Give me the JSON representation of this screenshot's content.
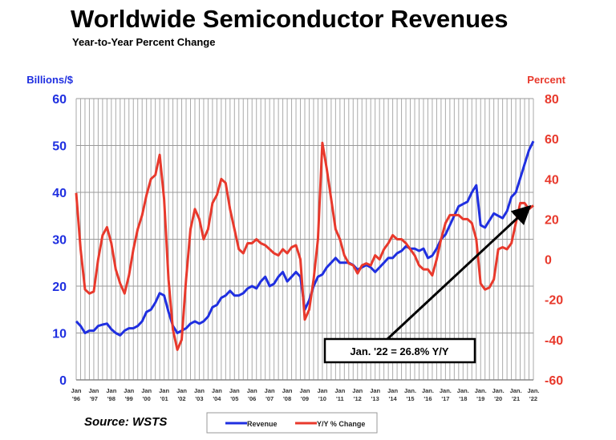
{
  "chart_data": {
    "type": "line",
    "title": "Worldwide Semiconductor Revenues",
    "subtitle": "Year-to-Year Percent Change",
    "ylabel_left": "Billions/$",
    "ylabel_right": "Percent",
    "ylim_left": [
      0,
      60
    ],
    "ylim_right": [
      -60,
      80
    ],
    "yticks_left": [
      "0",
      "10",
      "20",
      "30",
      "40",
      "50",
      "60"
    ],
    "yticks_right": [
      "-60",
      "-40",
      "-20",
      "0",
      "20",
      "40",
      "60",
      "80"
    ],
    "xticks": [
      [
        "Jan",
        "'96"
      ],
      [
        "Jan",
        "'97"
      ],
      [
        "Jan",
        "'98"
      ],
      [
        "Jan",
        "'99"
      ],
      [
        "Jan",
        "'00"
      ],
      [
        "Jan",
        "'01"
      ],
      [
        "Jan",
        "'02"
      ],
      [
        "Jan",
        "'03"
      ],
      [
        "Jan",
        "'04"
      ],
      [
        "Jan",
        "'05"
      ],
      [
        "Jan",
        "'06"
      ],
      [
        "Jan",
        "'07"
      ],
      [
        "Jan",
        "'08"
      ],
      [
        "Jan",
        "'09"
      ],
      [
        "Jan",
        "'10"
      ],
      [
        "Jan",
        "'11"
      ],
      [
        "Jan",
        "'12"
      ],
      [
        "Jan",
        "'13"
      ],
      [
        "Jan",
        "'14"
      ],
      [
        "Jan.",
        "'15"
      ],
      [
        "Jan.",
        "'16"
      ],
      [
        "Jan.",
        "'17"
      ],
      [
        "Jan.",
        "'18"
      ],
      [
        "Jan.",
        "'19"
      ],
      [
        "Jan.",
        "'20"
      ],
      [
        "Jan.",
        "'21"
      ],
      [
        "Jan.",
        "'22"
      ]
    ],
    "x_start": 1996,
    "x_step": 0.25,
    "grid": true,
    "legend_position": "bottom",
    "series": [
      {
        "name": "Revenue",
        "axis": "left",
        "color": "#1f2fe0",
        "values": [
          12.5,
          11.5,
          10,
          10.5,
          10.5,
          11.5,
          11.8,
          12,
          10.8,
          10,
          9.5,
          10.5,
          11,
          11,
          11.5,
          12.5,
          14.5,
          15,
          16.5,
          18.5,
          18,
          14.5,
          11.5,
          10,
          10.5,
          11,
          12,
          12.5,
          12,
          12.5,
          13.5,
          15.5,
          16,
          17.5,
          18,
          19,
          18,
          18,
          18.5,
          19.5,
          20,
          19.5,
          21,
          22,
          20,
          20.5,
          22,
          23,
          21,
          22,
          23,
          22,
          15,
          17,
          20,
          22,
          22.5,
          24,
          25,
          26,
          25,
          25,
          25,
          24.5,
          23.5,
          24,
          24.5,
          24,
          23,
          24,
          25,
          26,
          26,
          27,
          27.5,
          28.5,
          28,
          28,
          27.5,
          28,
          26,
          26.5,
          28,
          30,
          31,
          33,
          35,
          37,
          37.5,
          38,
          40,
          41.5,
          33,
          32.5,
          34,
          35.5,
          35,
          34.5,
          36,
          39,
          40,
          43,
          46,
          49,
          50.9
        ]
      },
      {
        "name": "Y/Y % Change",
        "axis": "right",
        "color": "#e8392c",
        "values": [
          33,
          5,
          -15,
          -17,
          -16,
          0,
          12,
          16,
          8,
          -5,
          -12,
          -17,
          -8,
          5,
          15,
          22,
          32,
          40,
          42,
          52,
          30,
          -10,
          -35,
          -45,
          -40,
          -10,
          15,
          25,
          20,
          10,
          15,
          28,
          32,
          40,
          38,
          25,
          15,
          5,
          3,
          8,
          8,
          10,
          8,
          7,
          5,
          3,
          2,
          5,
          3,
          6,
          7,
          0,
          -30,
          -25,
          -10,
          10,
          58,
          45,
          30,
          15,
          10,
          2,
          -2,
          -3,
          -7,
          -3,
          -2,
          -3,
          2,
          0,
          5,
          8,
          12,
          10,
          10,
          8,
          5,
          2,
          -3,
          -5,
          -5,
          -8,
          0,
          10,
          18,
          22,
          22,
          22,
          20,
          20,
          18,
          10,
          -12,
          -15,
          -14,
          -10,
          5,
          6,
          5,
          8,
          18,
          28,
          28,
          25,
          26.8
        ]
      }
    ],
    "annotation": "Jan. '22 = 26.8% Y/Y",
    "source": "Source: WSTS"
  }
}
